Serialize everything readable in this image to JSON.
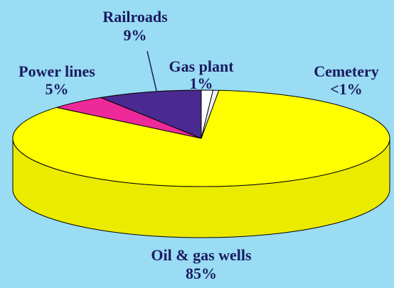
{
  "chart_data": {
    "type": "pie",
    "categories": [
      "Gas plant",
      "Cemetery",
      "Oil & gas wells",
      "Power lines",
      "Railroads"
    ],
    "values": [
      1,
      0.5,
      85,
      5,
      9
    ],
    "value_labels": [
      "1%",
      "<1%",
      "85%",
      "5%",
      "9%"
    ],
    "colors": [
      "#ffffff",
      "#f0f0f0",
      "#ffff00",
      "#ee2a9a",
      "#4a2a90"
    ]
  }
}
